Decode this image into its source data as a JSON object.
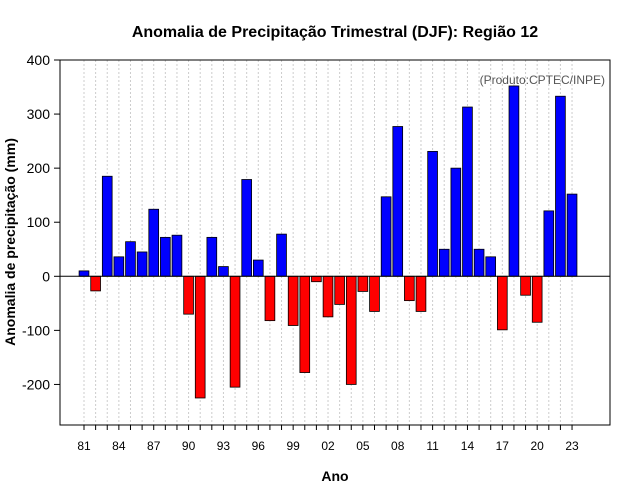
{
  "chart_data": {
    "type": "bar",
    "title": "Anomalia de Precipitação Trimestral (DJF): Região 12",
    "xlabel": "Ano",
    "ylabel": "Anomalia de precipitação (mm)",
    "annotation": "(Produto:CPTEC/INPE)",
    "ylim": [
      -275,
      400
    ],
    "yticks": [
      -200,
      -100,
      0,
      100,
      200,
      300,
      400
    ],
    "x": [
      1981,
      1982,
      1983,
      1984,
      1985,
      1986,
      1987,
      1988,
      1989,
      1990,
      1991,
      1992,
      1993,
      1994,
      1995,
      1996,
      1997,
      1998,
      1999,
      2000,
      2001,
      2002,
      2003,
      2004,
      2005,
      2006,
      2007,
      2008,
      2009,
      2010,
      2011,
      2012,
      2013,
      2014,
      2015,
      2016,
      2017,
      2018,
      2019,
      2020,
      2021,
      2022,
      2023
    ],
    "xtick_labels": [
      "81",
      "84",
      "87",
      "90",
      "93",
      "96",
      "99",
      "02",
      "05",
      "08",
      "11",
      "14",
      "17",
      "20",
      "23"
    ],
    "xtick_years": [
      1981,
      1984,
      1987,
      1990,
      1993,
      1996,
      1999,
      2002,
      2005,
      2008,
      2011,
      2014,
      2017,
      2020,
      2023
    ],
    "values": [
      10,
      -27,
      185,
      36,
      64,
      45,
      124,
      72,
      76,
      -70,
      -225,
      72,
      18,
      -205,
      179,
      30,
      -82,
      78,
      -91,
      -178,
      -10,
      -75,
      -52,
      -200,
      -28,
      -65,
      147,
      277,
      -45,
      -65,
      231,
      50,
      200,
      313,
      50,
      36,
      -99,
      352,
      -35,
      -85,
      121,
      333,
      152
    ],
    "colors": {
      "positive": "#0000ff",
      "negative": "#ff0000",
      "zero_line": "#000000",
      "grid": "#cccccc"
    },
    "grid": true
  }
}
